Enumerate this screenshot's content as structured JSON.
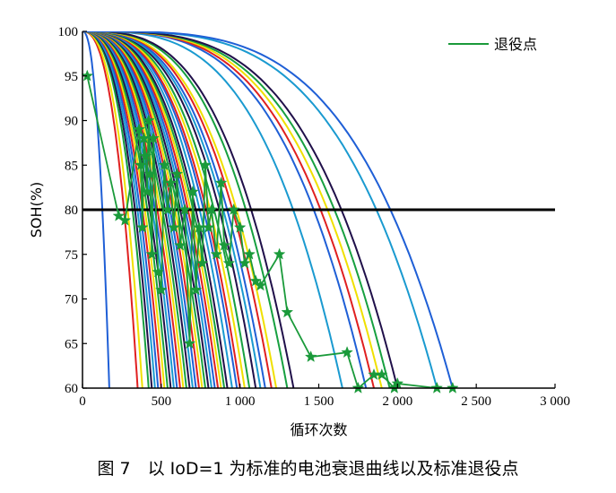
{
  "chart_data": {
    "type": "line",
    "xlabel": "循环次数",
    "ylabel": "SOH(%)",
    "xlim": [
      0,
      3000
    ],
    "ylim": [
      60,
      100
    ],
    "x_ticks": [
      0,
      500,
      1000,
      1500,
      2000,
      2500,
      3000
    ],
    "x_tick_labels": [
      "0",
      "500",
      "1 000",
      "1 500",
      "2 000",
      "2 500",
      "3 000"
    ],
    "y_ticks": [
      60,
      65,
      70,
      75,
      80,
      85,
      90,
      95,
      100
    ],
    "y_tick_labels": [
      "60",
      "65",
      "70",
      "75",
      "80",
      "85",
      "90",
      "95",
      "100"
    ],
    "threshold_line": {
      "y": 80,
      "color": "#000000"
    },
    "legend": {
      "position": "top-right",
      "entries": [
        {
          "label": "退役点",
          "color": "#1a9a3a"
        }
      ]
    },
    "curve_colors": [
      "#1f5fd6",
      "#e02020",
      "#f0e000",
      "#17a040",
      "#20104a",
      "#1a9ad0"
    ],
    "degradation_curves_end_cycles": [
      170,
      350,
      380,
      420,
      440,
      460,
      480,
      500,
      520,
      540,
      560,
      580,
      600,
      620,
      640,
      660,
      680,
      700,
      720,
      740,
      760,
      780,
      800,
      820,
      840,
      860,
      880,
      900,
      920,
      950,
      980,
      1000,
      1030,
      1060,
      1100,
      1130,
      1160,
      1200,
      1230,
      1300,
      1340,
      1650,
      1800,
      1850,
      1900,
      1950,
      2000,
      2250,
      2350
    ],
    "series": [
      {
        "name": "退役点",
        "color": "#1a9a3a",
        "x": [
          30,
          230,
          270,
          360,
          370,
          380,
          390,
          400,
          410,
          420,
          430,
          440,
          450,
          480,
          500,
          520,
          540,
          560,
          580,
          600,
          620,
          650,
          680,
          700,
          720,
          740,
          760,
          780,
          800,
          820,
          850,
          880,
          900,
          930,
          960,
          1000,
          1030,
          1060,
          1100,
          1130,
          1250,
          1300,
          1450,
          1680,
          1750,
          1850,
          1900,
          1980,
          2000,
          2250,
          2350
        ],
        "y": [
          95,
          79.3,
          78.8,
          89,
          85,
          78,
          88,
          86,
          82,
          90,
          84,
          75,
          88,
          73,
          71,
          85,
          80,
          83,
          78,
          84,
          76,
          80,
          65,
          82,
          71,
          78,
          74,
          85,
          78,
          80,
          75,
          83,
          76,
          74,
          80,
          78,
          74,
          75,
          72,
          71.5,
          75,
          68.5,
          63.5,
          64,
          60,
          61.5,
          61.5,
          60,
          60.5,
          60,
          60
        ]
      }
    ]
  },
  "caption": "图 7　以 IoD=1 为标准的电池衰退曲线以及标准退役点"
}
